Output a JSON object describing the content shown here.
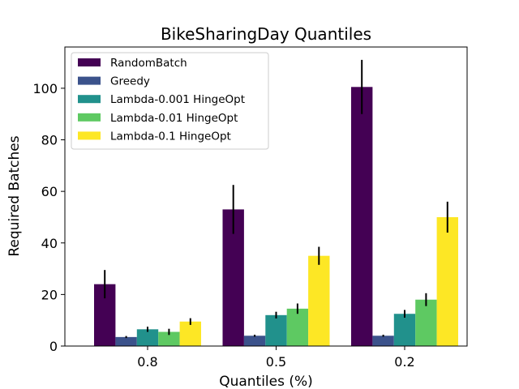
{
  "chart_data": {
    "type": "bar",
    "title": "BikeSharingDay Quantiles",
    "xlabel": "Quantiles (%)",
    "ylabel": "Required Batches",
    "categories": [
      "0.8",
      "0.5",
      "0.2"
    ],
    "ylim": [
      0,
      116
    ],
    "yticks": [
      0,
      20,
      40,
      60,
      80,
      100
    ],
    "grid": false,
    "legend_position": "top-left",
    "series": [
      {
        "name": "RandomBatch",
        "color": "#440154",
        "values": [
          24,
          53,
          100.5
        ],
        "errors": [
          5.5,
          9.5,
          10.5
        ]
      },
      {
        "name": "Greedy",
        "color": "#3b528b",
        "values": [
          3.5,
          4.0,
          4.0
        ],
        "errors": [
          0.4,
          0.4,
          0.4
        ]
      },
      {
        "name": "Lambda-0.001 HingeOpt",
        "color": "#21918c",
        "values": [
          6.5,
          12.0,
          12.5
        ],
        "errors": [
          1.0,
          1.3,
          1.5
        ]
      },
      {
        "name": "Lambda-0.01 HingeOpt",
        "color": "#5ec962",
        "values": [
          5.5,
          14.5,
          18.0
        ],
        "errors": [
          1.2,
          2.0,
          2.5
        ]
      },
      {
        "name": "Lambda-0.1 HingeOpt",
        "color": "#fde725",
        "values": [
          9.5,
          35.0,
          50.0
        ],
        "errors": [
          1.3,
          3.5,
          6.0
        ]
      }
    ]
  }
}
